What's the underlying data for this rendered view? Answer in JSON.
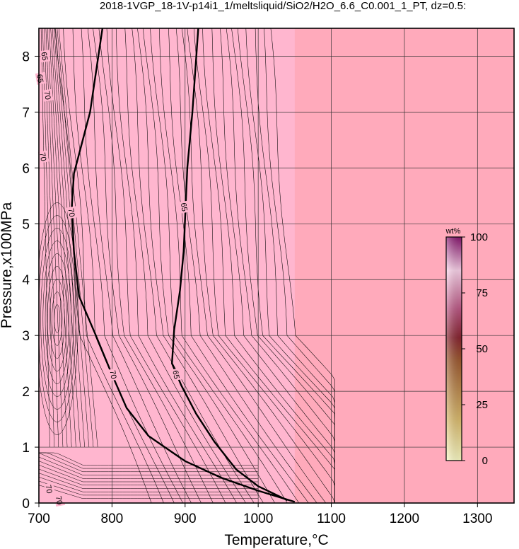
{
  "chart_data": {
    "type": "contour",
    "title": "2018-1VGP_18-1V-p14i1_1/meltsliquid/SiO2/H2O_6.6_C0.001_1_PT, dz=0.5:",
    "xlabel": "Temperature,°C",
    "ylabel": "Pressure,x100MPa",
    "xlim": [
      700,
      1350
    ],
    "ylim": [
      0,
      8.5
    ],
    "x_ticks": [
      "700",
      "800",
      "900",
      "1000",
      "1100",
      "1200",
      "1300"
    ],
    "y_ticks": [
      "0",
      "1",
      "2",
      "3",
      "4",
      "5",
      "6",
      "7",
      "8"
    ],
    "grid": true,
    "fill_color_melt": "#ffb6cf",
    "fill_color_no_melt": "#ffaabb",
    "solidus_boundary_T_degC": 1050,
    "highlighted_contours": [
      {
        "label": "70",
        "points": [
          [
            787,
            8.5
          ],
          [
            770,
            7.0
          ],
          [
            748,
            5.9
          ],
          [
            745,
            5.3
          ],
          [
            748,
            4.5
          ],
          [
            755,
            3.7
          ],
          [
            778,
            3.0
          ],
          [
            800,
            2.3
          ],
          [
            820,
            1.7
          ],
          [
            850,
            1.2
          ],
          [
            900,
            0.75
          ],
          [
            950,
            0.45
          ],
          [
            1000,
            0.22
          ],
          [
            1050,
            0.02
          ]
        ]
      },
      {
        "label": "65",
        "points": [
          [
            918,
            8.5
          ],
          [
            910,
            7.0
          ],
          [
            903,
            6.0
          ],
          [
            898,
            4.5
          ],
          [
            893,
            3.8
          ],
          [
            885,
            3.1
          ],
          [
            882,
            2.5
          ],
          [
            895,
            2.1
          ],
          [
            915,
            1.6
          ],
          [
            940,
            1.1
          ],
          [
            970,
            0.6
          ],
          [
            1000,
            0.3
          ],
          [
            1040,
            0.05
          ]
        ]
      }
    ],
    "contour_labels": [
      {
        "text": "65",
        "T": 702,
        "P": 7.6
      },
      {
        "text": "65",
        "T": 708,
        "P": 8.0
      },
      {
        "text": "70",
        "T": 712,
        "P": 7.3
      },
      {
        "text": "70",
        "T": 706,
        "P": 6.2
      },
      {
        "text": "70",
        "T": 745,
        "P": 5.2
      },
      {
        "text": "65",
        "T": 899,
        "P": 5.3
      },
      {
        "text": "70",
        "T": 802,
        "P": 2.3
      },
      {
        "text": "65",
        "T": 888,
        "P": 2.3
      },
      {
        "text": "70",
        "T": 714,
        "P": 0.25
      },
      {
        "text": "70",
        "T": 728,
        "P": 0.05
      }
    ],
    "colorbar": {
      "unit": "wt%",
      "ticks": [
        "0",
        "25",
        "50",
        "75",
        "100"
      ],
      "range": [
        0,
        100
      ],
      "colors": [
        "#ffffc8",
        "#e0c070",
        "#a05a30",
        "#8a2430",
        "#c05a88",
        "#ffd6ee",
        "#8a1470"
      ]
    }
  }
}
